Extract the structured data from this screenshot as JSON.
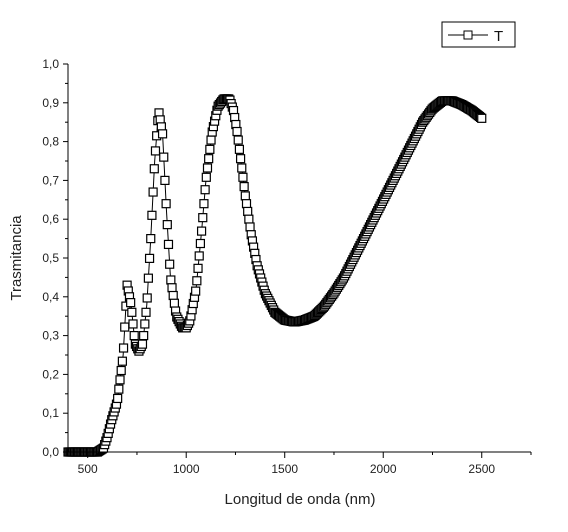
{
  "chart_data": {
    "type": "line",
    "xlabel": "Longitud de onda (nm)",
    "ylabel": "Trasmitancia",
    "xlim": [
      400,
      2750
    ],
    "ylim": [
      0,
      1.0
    ],
    "x_ticks": [
      500,
      1000,
      1500,
      2000,
      2500
    ],
    "y_ticks": [
      0.0,
      0.1,
      0.2,
      0.3,
      0.4,
      0.5,
      0.6,
      0.7,
      0.8,
      0.9,
      1.0
    ],
    "y_tick_labels": [
      "0,0",
      "0,1",
      "0,2",
      "0,3",
      "0,4",
      "0,5",
      "0,6",
      "0,7",
      "0,8",
      "0,9",
      "1,0"
    ],
    "grid": false,
    "legend_position": "top-right",
    "series": [
      {
        "name": "T",
        "marker": "open-square",
        "color": "#000000",
        "x": [
          400,
          500,
          550,
          580,
          600,
          620,
          650,
          680,
          700,
          720,
          740,
          760,
          780,
          800,
          820,
          840,
          860,
          880,
          900,
          920,
          950,
          980,
          1000,
          1020,
          1050,
          1080,
          1100,
          1130,
          1160,
          1190,
          1220,
          1240,
          1260,
          1280,
          1300,
          1330,
          1360,
          1400,
          1450,
          1500,
          1550,
          1600,
          1650,
          1700,
          1750,
          1800,
          1850,
          1900,
          1950,
          2000,
          2050,
          2100,
          2150,
          2200,
          2250,
          2300,
          2350,
          2400,
          2450,
          2500
        ],
        "y": [
          0.0,
          0.0,
          0.0,
          0.01,
          0.04,
          0.08,
          0.13,
          0.25,
          0.43,
          0.38,
          0.28,
          0.26,
          0.28,
          0.38,
          0.55,
          0.75,
          0.88,
          0.82,
          0.62,
          0.45,
          0.35,
          0.32,
          0.32,
          0.34,
          0.42,
          0.58,
          0.7,
          0.82,
          0.89,
          0.91,
          0.91,
          0.88,
          0.82,
          0.74,
          0.66,
          0.56,
          0.48,
          0.41,
          0.36,
          0.34,
          0.335,
          0.34,
          0.35,
          0.375,
          0.41,
          0.45,
          0.5,
          0.55,
          0.6,
          0.65,
          0.7,
          0.75,
          0.8,
          0.85,
          0.885,
          0.905,
          0.905,
          0.895,
          0.88,
          0.86
        ]
      }
    ]
  }
}
